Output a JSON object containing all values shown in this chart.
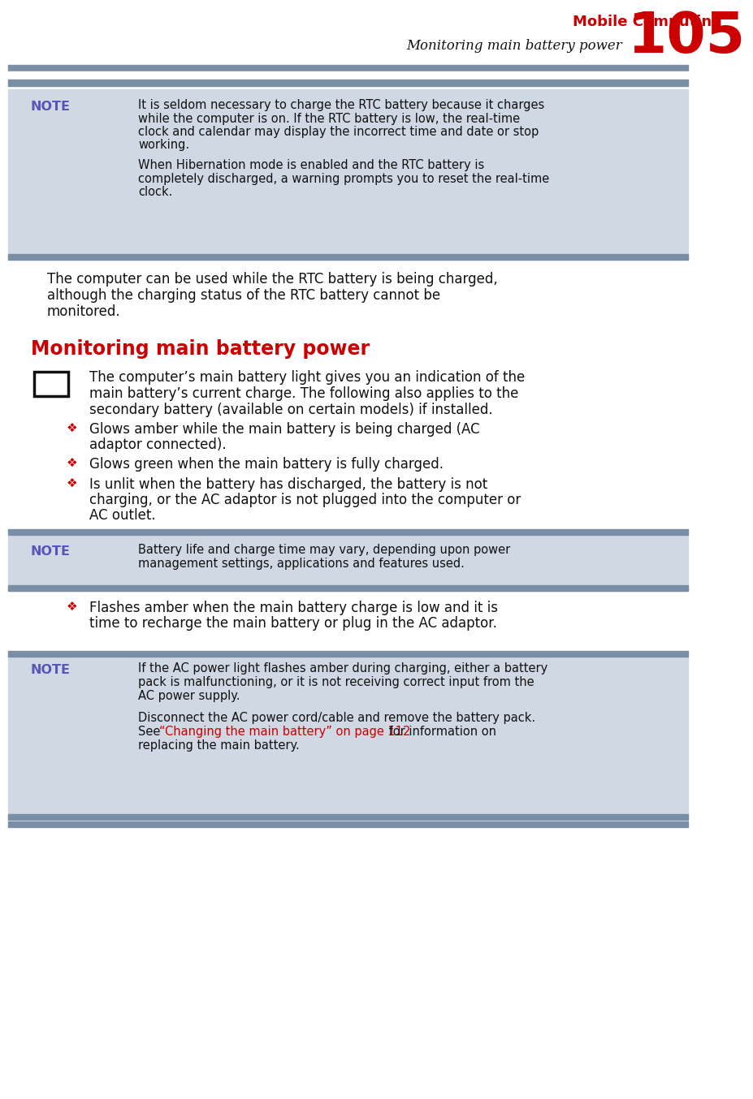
{
  "page_number": "105",
  "header_title": "Mobile Computing",
  "header_subtitle": "Monitoring main battery power",
  "separator_color": "#7a8fa6",
  "note_bg_color": "#d0d8e4",
  "note_label_color": "#5555bb",
  "red_color": "#cc0000",
  "black_color": "#111111",
  "white_color": "#ffffff",
  "section_heading": "Monitoring main battery power",
  "note1_line1": "It is seldom necessary to charge the RTC battery because it charges",
  "note1_line2": "while the computer is on. If the RTC battery is low, the real-time",
  "note1_line3": "clock and calendar may display the incorrect time and date or stop",
  "note1_line4": "working.",
  "note1_line5": "When Hibernation mode is enabled and the RTC battery is",
  "note1_line6": "completely discharged, a warning prompts you to reset the real-time",
  "note1_line7": "clock.",
  "body1_line1": "The computer can be used while the RTC battery is being charged,",
  "body1_line2": "although the charging status of the RTC battery cannot be",
  "body1_line3": "monitored.",
  "icon_line1": "The computer’s main battery light gives you an indication of the",
  "icon_line2": "main battery’s current charge. The following also applies to the",
  "icon_line3": "secondary battery (available on certain models) if installed.",
  "bullet1_line1": "Glows amber while the main battery is being charged (AC",
  "bullet1_line2": "adaptor connected).",
  "bullet2": "Glows green when the main battery is fully charged.",
  "bullet3_line1": "Is unlit when the battery has discharged, the battery is not",
  "bullet3_line2": "charging, or the AC adaptor is not plugged into the computer or",
  "bullet3_line3": "AC outlet.",
  "note2_line1": "Battery life and charge time may vary, depending upon power",
  "note2_line2": "management settings, applications and features used.",
  "bullet4_line1": "Flashes amber when the main battery charge is low and it is",
  "bullet4_line2": "time to recharge the main battery or plug in the AC adaptor.",
  "note3_line1": "If the AC power light flashes amber during charging, either a battery",
  "note3_line2": "pack is malfunctioning, or it is not receiving correct input from the",
  "note3_line3": "AC power supply.",
  "note3_line4": "Disconnect the AC power cord/cable and remove the battery pack.",
  "note3_line5a": "See ",
  "note3_line5b": "“Changing the main battery” on page 112",
  "note3_line5c": " for information on",
  "note3_line6": "replacing the main battery."
}
